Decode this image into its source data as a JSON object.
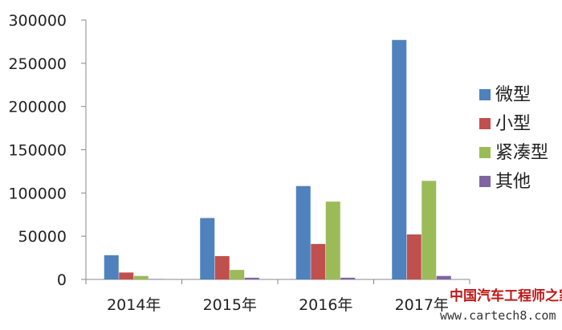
{
  "chart_data": {
    "type": "bar",
    "categories": [
      "2014年",
      "2015年",
      "2016年",
      "2017年"
    ],
    "series": [
      {
        "name": "微型",
        "values": [
          28000,
          71000,
          108000,
          277000
        ],
        "color": "#4f81bd"
      },
      {
        "name": "小型",
        "values": [
          8000,
          27000,
          41000,
          52000
        ],
        "color": "#c0504d"
      },
      {
        "name": "紧凑型",
        "values": [
          4000,
          11000,
          90000,
          114000
        ],
        "color": "#9bbb59"
      },
      {
        "name": "其他",
        "values": [
          500,
          2000,
          2000,
          4000
        ],
        "color": "#8064a2"
      }
    ],
    "ylim": [
      0,
      300000
    ],
    "yticks": [
      0,
      50000,
      100000,
      150000,
      200000,
      250000,
      300000
    ],
    "ytick_labels": [
      "0",
      "50000",
      "100000",
      "150000",
      "200000",
      "250000",
      "300000"
    ],
    "grid": false,
    "legend_position": "right"
  },
  "watermark": {
    "text": "中国汽车工程师之家",
    "url": "www.cartech8.com"
  }
}
